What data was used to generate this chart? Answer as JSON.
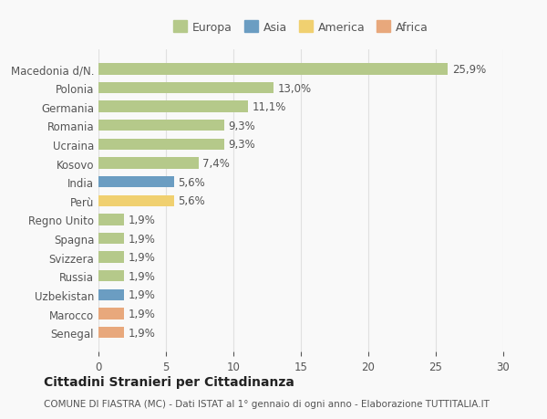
{
  "categories": [
    "Macedonia d/N.",
    "Polonia",
    "Germania",
    "Romania",
    "Ucraina",
    "Kosovo",
    "India",
    "Perù",
    "Regno Unito",
    "Spagna",
    "Svizzera",
    "Russia",
    "Uzbekistan",
    "Marocco",
    "Senegal"
  ],
  "values": [
    25.9,
    13.0,
    11.1,
    9.3,
    9.3,
    7.4,
    5.6,
    5.6,
    1.9,
    1.9,
    1.9,
    1.9,
    1.9,
    1.9,
    1.9
  ],
  "labels": [
    "25,9%",
    "13,0%",
    "11,1%",
    "9,3%",
    "9,3%",
    "7,4%",
    "5,6%",
    "5,6%",
    "1,9%",
    "1,9%",
    "1,9%",
    "1,9%",
    "1,9%",
    "1,9%",
    "1,9%"
  ],
  "continent": [
    "Europa",
    "Europa",
    "Europa",
    "Europa",
    "Europa",
    "Europa",
    "Asia",
    "America",
    "Europa",
    "Europa",
    "Europa",
    "Europa",
    "Asia",
    "Africa",
    "Africa"
  ],
  "colors": {
    "Europa": "#b5c98a",
    "Asia": "#6b9dc2",
    "America": "#f0d070",
    "Africa": "#e8a87c"
  },
  "legend_labels": [
    "Europa",
    "Asia",
    "America",
    "Africa"
  ],
  "legend_colors": [
    "#b5c98a",
    "#6b9dc2",
    "#f0d070",
    "#e8a87c"
  ],
  "title": "Cittadini Stranieri per Cittadinanza",
  "subtitle": "COMUNE DI FIASTRA (MC) - Dati ISTAT al 1° gennaio di ogni anno - Elaborazione TUTTITALIA.IT",
  "xlim": [
    0,
    30
  ],
  "xticks": [
    0,
    5,
    10,
    15,
    20,
    25,
    30
  ],
  "background_color": "#f9f9f9",
  "grid_color": "#e0e0e0"
}
